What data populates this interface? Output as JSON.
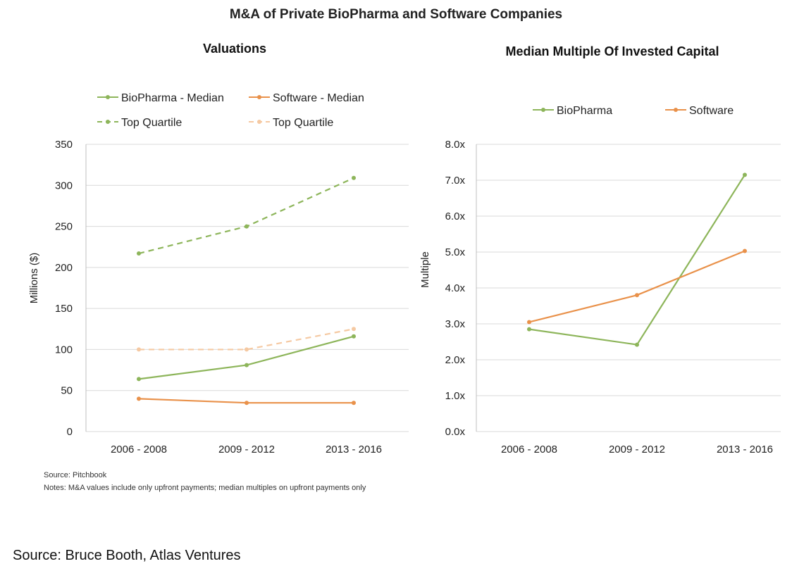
{
  "page": {
    "title": "M&A of Private BioPharma and Software Companies",
    "source_note": "Source: Pitchbook",
    "notes": "Notes: M&A values include only upfront payments; median multiples on upfront payments only",
    "attribution": "Source: Bruce Booth, Atlas Ventures"
  },
  "chart_data": [
    {
      "type": "line",
      "title": "Valuations",
      "xlabel": "",
      "ylabel": "Millions ($)",
      "categories": [
        "2006 - 2008",
        "2009 - 2012",
        "2013 - 2016"
      ],
      "ylim": [
        0,
        350
      ],
      "yticks": [
        0,
        50,
        100,
        150,
        200,
        250,
        300,
        350
      ],
      "ytick_labels": [
        "0",
        "50",
        "100",
        "150",
        "200",
        "250",
        "300",
        "350"
      ],
      "grid": true,
      "legend_position": "top",
      "series": [
        {
          "name": "BioPharma - Median",
          "values": [
            64,
            81,
            116
          ],
          "color": "#8db55a",
          "dashed": false
        },
        {
          "name": "Software - Median",
          "values": [
            40,
            35,
            35
          ],
          "color": "#e9914a",
          "dashed": false
        },
        {
          "name": "Top Quartile",
          "values": [
            217,
            250,
            309
          ],
          "color": "#8db55a",
          "dashed": true
        },
        {
          "name": "Top Quartile",
          "values": [
            100,
            100,
            125
          ],
          "color": "#f5c9a2",
          "dashed": true
        }
      ]
    },
    {
      "type": "line",
      "title": "Median Multiple Of Invested Capital",
      "xlabel": "",
      "ylabel": "Multiple",
      "categories": [
        "2006 - 2008",
        "2009 - 2012",
        "2013 - 2016"
      ],
      "ylim": [
        0,
        8
      ],
      "yticks": [
        0,
        1,
        2,
        3,
        4,
        5,
        6,
        7,
        8
      ],
      "ytick_labels": [
        "0.0x",
        "1.0x",
        "2.0x",
        "3.0x",
        "4.0x",
        "5.0x",
        "6.0x",
        "7.0x",
        "8.0x"
      ],
      "grid": true,
      "legend_position": "top",
      "series": [
        {
          "name": "BioPharma",
          "values": [
            2.85,
            2.42,
            7.15
          ],
          "color": "#8db55a",
          "dashed": false
        },
        {
          "name": "Software",
          "values": [
            3.05,
            3.8,
            5.03
          ],
          "color": "#e9914a",
          "dashed": false
        }
      ]
    }
  ]
}
